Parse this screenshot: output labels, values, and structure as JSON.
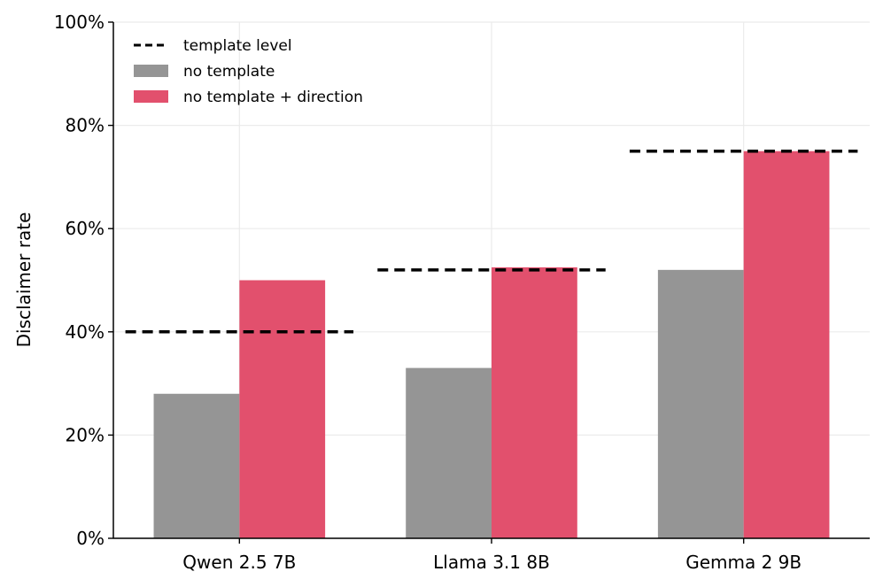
{
  "chart_data": {
    "type": "bar",
    "title": "",
    "xlabel": "",
    "ylabel": "Disclaimer rate",
    "ylim": [
      0,
      100
    ],
    "yticks": [
      0,
      20,
      40,
      60,
      80,
      100
    ],
    "ytick_suffix": "%",
    "grid": true,
    "legend_position": "top-left",
    "categories": [
      "Qwen 2.5 7B",
      "Llama 3.1 8B",
      "Gemma 2 9B"
    ],
    "series": [
      {
        "name": "no template",
        "values": [
          28,
          33,
          52
        ],
        "color": "#959595"
      },
      {
        "name": "no template + direction",
        "values": [
          50,
          52.5,
          75
        ],
        "color": "#e2506d"
      }
    ],
    "reference_lines": {
      "name": "template level",
      "values": [
        40,
        52,
        75
      ],
      "color": "#000000",
      "style": "dashed"
    }
  }
}
